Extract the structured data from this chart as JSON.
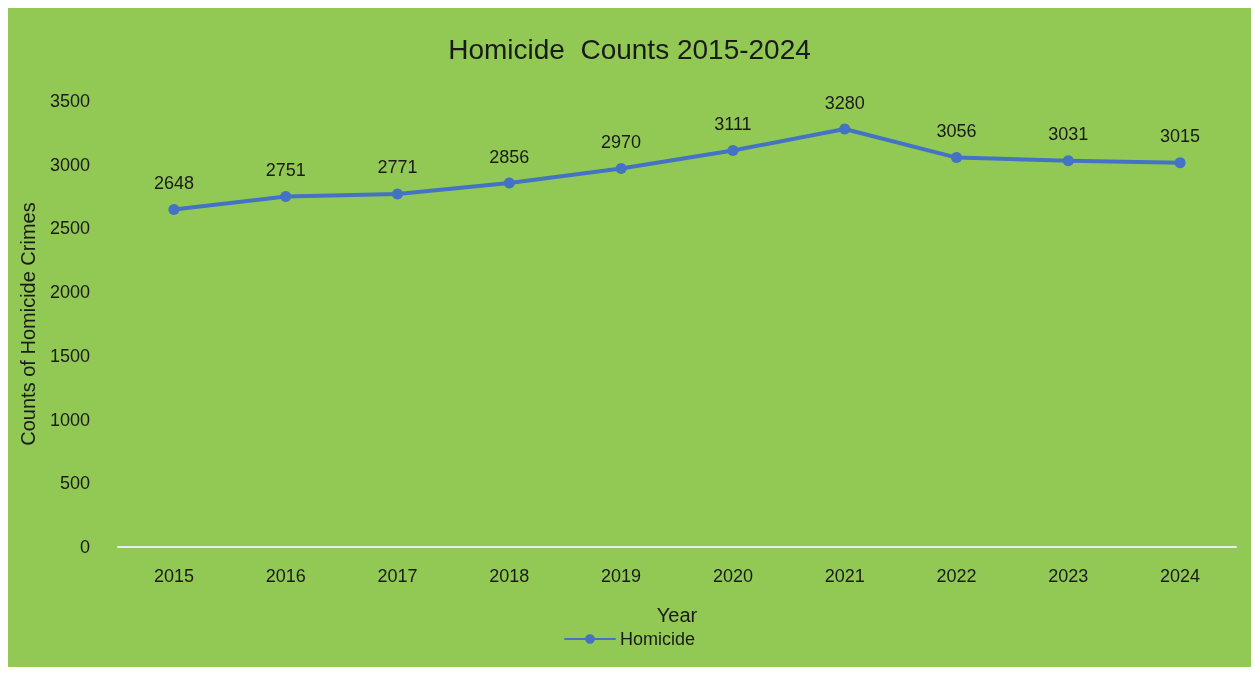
{
  "chart_data": {
    "type": "line",
    "title": "Homicide  Counts 2015-2024",
    "xlabel": "Year",
    "ylabel": "Counts of Homicide Crimes",
    "categories": [
      "2015",
      "2016",
      "2017",
      "2018",
      "2019",
      "2020",
      "2021",
      "2022",
      "2023",
      "2024"
    ],
    "series": [
      {
        "name": "Homicide",
        "color": "#4472c4",
        "values": [
          2648,
          2751,
          2771,
          2856,
          2970,
          3111,
          3280,
          3056,
          3031,
          3015
        ]
      }
    ],
    "ylim": [
      0,
      3500
    ],
    "yticks": [
      0,
      500,
      1000,
      1500,
      2000,
      2500,
      3000,
      3500
    ],
    "data_labels": true,
    "legend": "bottom",
    "marker": "circle",
    "line_style": "solid"
  }
}
